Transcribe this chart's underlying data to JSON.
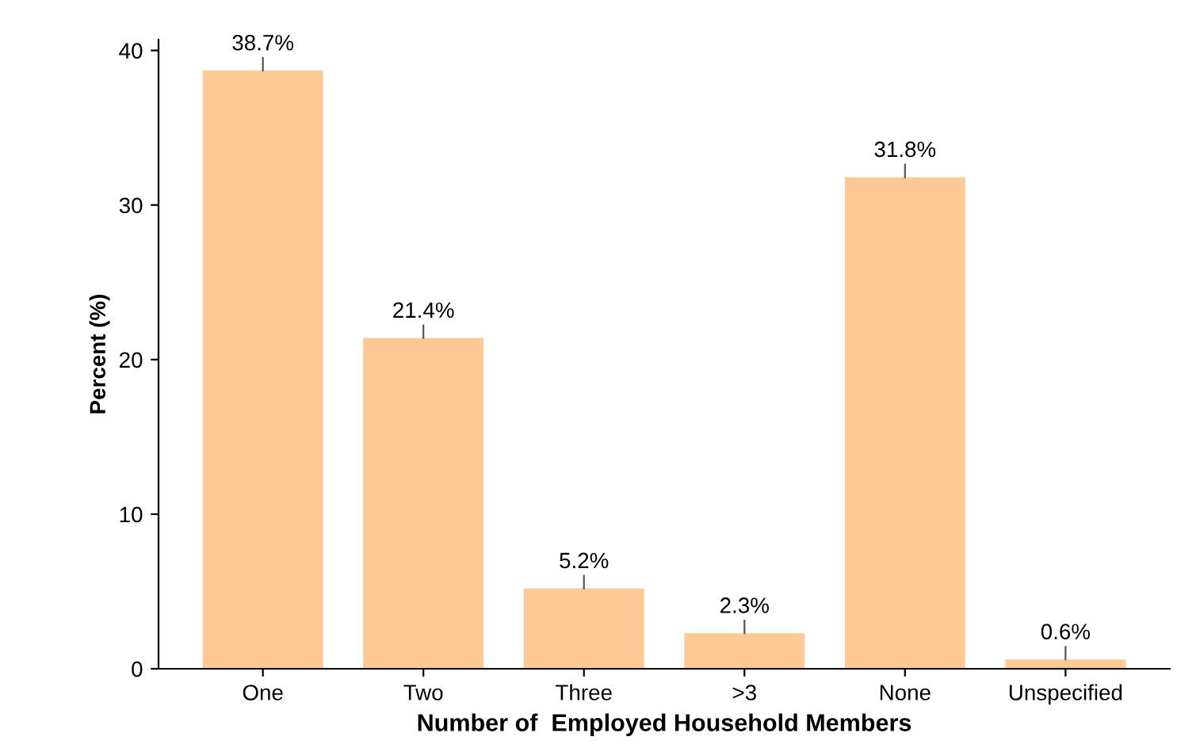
{
  "chart_data": {
    "type": "bar",
    "categories": [
      "One",
      "Two",
      "Three",
      ">3",
      "None",
      "Unspecified"
    ],
    "values": [
      38.7,
      21.4,
      5.2,
      2.3,
      31.8,
      0.6
    ],
    "value_labels": [
      "38.7%",
      "21.4%",
      "5.2%",
      "2.3%",
      "31.8%",
      "0.6%"
    ],
    "color": "#fdca96",
    "xlabel": "Number of  Employed Household Members",
    "ylabel": "Percent (%)",
    "ylim": [
      0,
      40.7
    ],
    "yticks": [
      0,
      10,
      20,
      30,
      40
    ],
    "grid": false,
    "legend": false
  }
}
